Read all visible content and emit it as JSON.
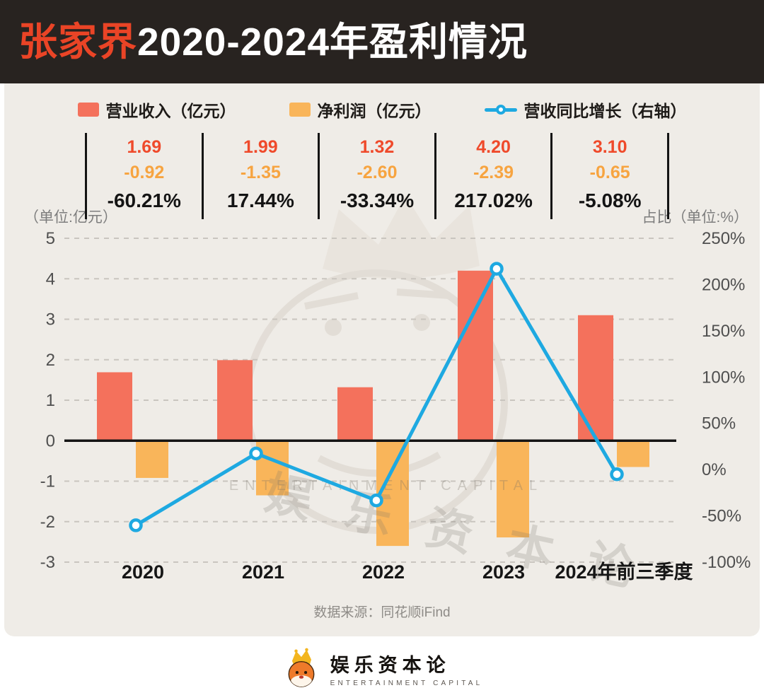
{
  "header": {
    "title_highlight": "张家界",
    "title_rest": "2020-2024年盈利情况"
  },
  "stats": {
    "columns": [
      {
        "revenue": "1.69",
        "net_profit": "-0.92",
        "growth": "-60.21%"
      },
      {
        "revenue": "1.99",
        "net_profit": "-1.35",
        "growth": "17.44%"
      },
      {
        "revenue": "1.32",
        "net_profit": "-2.60",
        "growth": "-33.34%"
      },
      {
        "revenue": "4.20",
        "net_profit": "-2.39",
        "growth": "217.02%"
      },
      {
        "revenue": "3.10",
        "net_profit": "-0.65",
        "growth": "-5.08%"
      }
    ]
  },
  "chart_data": {
    "type": "bar",
    "categories": [
      "2020",
      "2021",
      "2022",
      "2023",
      "2024年前三季度"
    ],
    "series": [
      {
        "name": "营业收入（亿元）",
        "type": "bar",
        "axis": "left",
        "color": "#f4715c",
        "values": [
          1.69,
          1.99,
          1.32,
          4.2,
          3.1
        ]
      },
      {
        "name": "净利润（亿元）",
        "type": "bar",
        "axis": "left",
        "color": "#f9b55a",
        "values": [
          -0.92,
          -1.35,
          -2.6,
          -2.39,
          -0.65
        ]
      },
      {
        "name": "营收同比增长（右轴）",
        "type": "line",
        "axis": "right",
        "color": "#1ea9e1",
        "values": [
          -60.21,
          17.44,
          -33.34,
          217.02,
          -5.08
        ]
      }
    ],
    "left_axis": {
      "label": "（单位:亿元）",
      "min": -3,
      "max": 5,
      "ticks": [
        5,
        4,
        3,
        2,
        1,
        0,
        -1,
        -2,
        -3
      ]
    },
    "right_axis": {
      "label": "占比（单位:%）",
      "min": -100,
      "max": 250,
      "ticks": [
        250,
        200,
        150,
        100,
        50,
        0,
        -50,
        -100
      ],
      "tick_suffix": "%"
    },
    "grid": true,
    "legend_position": "top"
  },
  "source": "数据来源：同花顺iFind",
  "watermark": {
    "cn": "娱 乐 资 本 论",
    "en": "ENTERTAINMENT CAPITAL"
  },
  "footer": {
    "brand_cn": "娱乐资本论",
    "brand_en": "ENTERTAINMENT CAPITAL"
  },
  "colors": {
    "title_red": "#ea4426",
    "revenue": "#ef4a2b",
    "net_profit": "#f7a440",
    "growth_line": "#1ea9e1"
  }
}
